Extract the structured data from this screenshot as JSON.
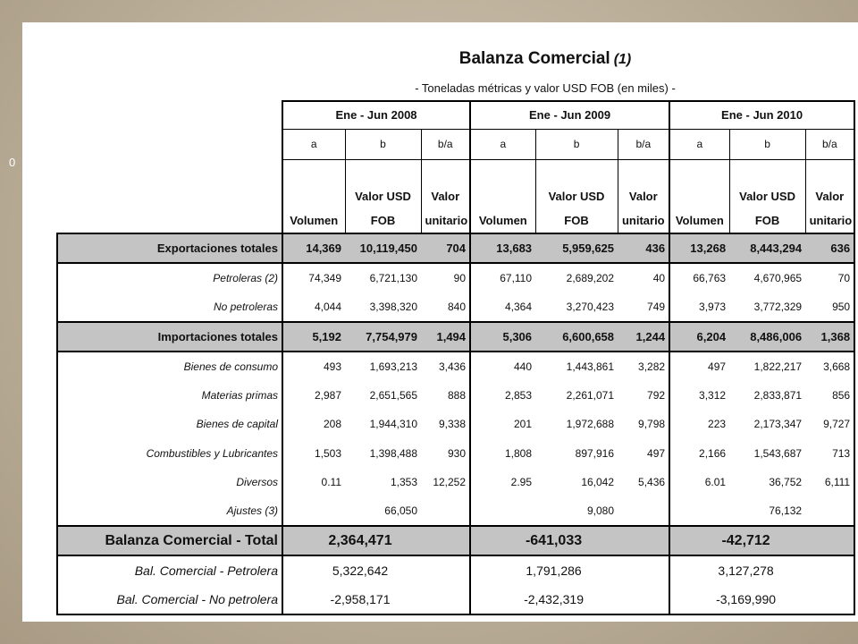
{
  "side_marker": "0",
  "header": {
    "title": "Balanza Comercial",
    "title_note": "(1)",
    "subtitle": "- Toneladas métricas y valor USD FOB (en miles) -"
  },
  "table": {
    "periods": [
      "Ene - Jun 2008",
      "Ene - Jun 2009",
      "Ene - Jun 2010"
    ],
    "sub_labels": [
      "a",
      "b",
      "b/a"
    ],
    "column_names": [
      "Volumen",
      "Valor USD FOB",
      "Valor unitario"
    ],
    "exports": {
      "label": "Exportaciones totales",
      "cells": [
        "14,369",
        "10,119,450",
        "704",
        "13,683",
        "5,959,625",
        "436",
        "13,268",
        "8,443,294",
        "636"
      ]
    },
    "export_items": [
      {
        "label": "Petroleras (2)",
        "cells": [
          "74,349",
          "6,721,130",
          "90",
          "67,110",
          "2,689,202",
          "40",
          "66,763",
          "4,670,965",
          "70"
        ]
      },
      {
        "label": "No petroleras",
        "cells": [
          "4,044",
          "3,398,320",
          "840",
          "4,364",
          "3,270,423",
          "749",
          "3,973",
          "3,772,329",
          "950"
        ]
      }
    ],
    "imports": {
      "label": "Importaciones totales",
      "cells": [
        "5,192",
        "7,754,979",
        "1,494",
        "5,306",
        "6,600,658",
        "1,244",
        "6,204",
        "8,486,006",
        "1,368"
      ]
    },
    "import_items": [
      {
        "label": "Bienes de consumo",
        "cells": [
          "493",
          "1,693,213",
          "3,436",
          "440",
          "1,443,861",
          "3,282",
          "497",
          "1,822,217",
          "3,668"
        ]
      },
      {
        "label": "Materias primas",
        "cells": [
          "2,987",
          "2,651,565",
          "888",
          "2,853",
          "2,261,071",
          "792",
          "3,312",
          "2,833,871",
          "856"
        ]
      },
      {
        "label": "Bienes de capital",
        "cells": [
          "208",
          "1,944,310",
          "9,338",
          "201",
          "1,972,688",
          "9,798",
          "223",
          "2,173,347",
          "9,727"
        ]
      },
      {
        "label": "Combustibles y Lubricantes",
        "cells": [
          "1,503",
          "1,398,488",
          "930",
          "1,808",
          "897,916",
          "497",
          "2,166",
          "1,543,687",
          "713"
        ]
      },
      {
        "label": "Diversos",
        "cells": [
          "0.11",
          "1,353",
          "12,252",
          "2.95",
          "16,042",
          "5,436",
          "6.01",
          "36,752",
          "6,111"
        ]
      },
      {
        "label": "Ajustes (3)",
        "cells": [
          null,
          "66,050",
          null,
          null,
          "9,080",
          null,
          null,
          "76,132",
          null
        ]
      }
    ],
    "balance": {
      "label": "Balanza Comercial - Total",
      "values": [
        "2,364,471",
        "-641,033",
        "-42,712"
      ]
    },
    "balance_items": [
      {
        "label": "Bal. Comercial - Petrolera",
        "values": [
          "5,322,642",
          "1,791,286",
          "3,127,278"
        ]
      },
      {
        "label": "Bal. Comercial - No petrolera",
        "values": [
          "-2,958,171",
          "-2,432,319",
          "-3,169,990"
        ]
      }
    ]
  }
}
